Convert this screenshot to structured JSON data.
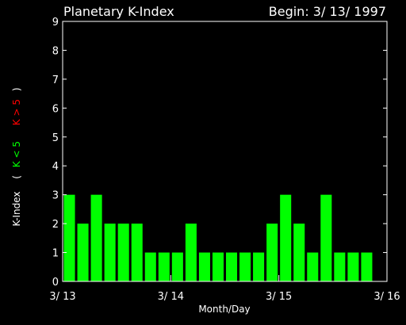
{
  "chart_data": {
    "type": "bar",
    "title": "Planetary K-Index",
    "subtitle": "Begin: 3/ 13/ 1997",
    "xlabel": "Month/Day",
    "ylabel": {
      "prefix": "K-Index",
      "open": "(",
      "low": "K < 5",
      "high": "K > 5",
      "close": ")"
    },
    "ylim": [
      0,
      9
    ],
    "yticks": [
      "0",
      "1",
      "2",
      "3",
      "4",
      "5",
      "6",
      "7",
      "8",
      "9"
    ],
    "xticks": [
      "3/ 13",
      "3/ 14",
      "3/ 15",
      "3/ 16"
    ],
    "values": [
      3,
      2,
      3,
      2,
      2,
      2,
      1,
      1,
      1,
      2,
      1,
      1,
      1,
      1,
      1,
      2,
      3,
      2,
      1,
      3,
      1,
      1,
      1
    ],
    "bar_color_low": "#00ff00",
    "bar_color_high": "#ff0000",
    "grid": false,
    "legend": "none"
  },
  "colors": {
    "background": "#000000",
    "axis": "#ffffff",
    "text": "#ffffff",
    "low_label": "#00ff00",
    "high_label": "#ff0000"
  }
}
